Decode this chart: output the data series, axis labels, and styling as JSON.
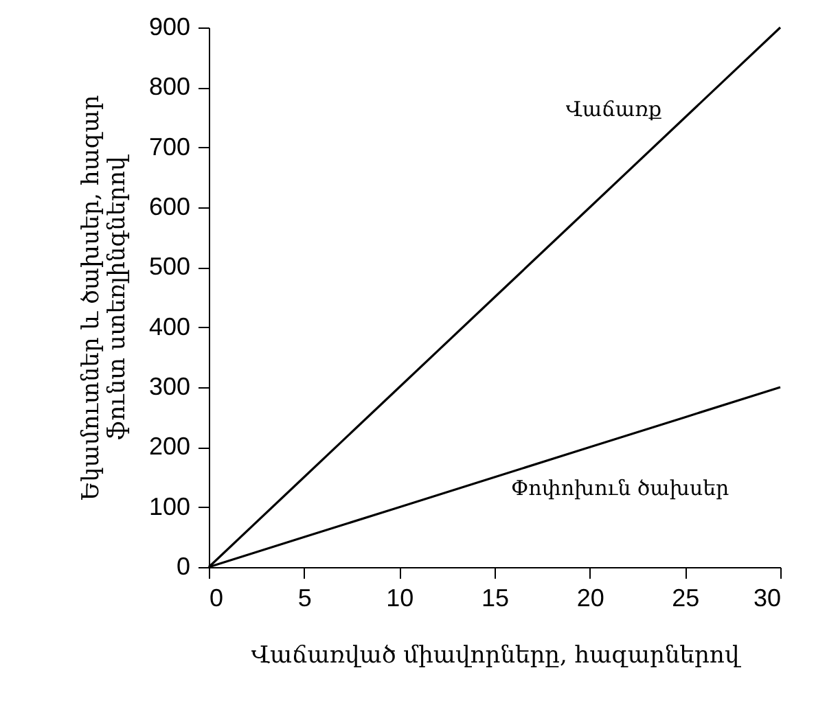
{
  "chart_data": {
    "type": "line",
    "xlabel": "Վաճառված միավորները, հազարներով",
    "ylabel": "Եկամուտներ և ծախսեր, հազար\nֆունտ ստեռլինգներով",
    "x": [
      0,
      5,
      10,
      15,
      20,
      25,
      30
    ],
    "series": [
      {
        "name": "Վաճառք",
        "color": "#000000",
        "values": [
          0,
          150,
          300,
          450,
          600,
          750,
          900
        ]
      },
      {
        "name": "Փոփոխուն ծախսեր",
        "color": "#000000",
        "values": [
          0,
          50,
          100,
          150,
          200,
          250,
          300
        ]
      }
    ],
    "xlim": [
      0,
      30
    ],
    "xticks": [
      0,
      5,
      10,
      15,
      20,
      25,
      30
    ],
    "ylim": [
      0,
      900
    ],
    "yticks": [
      0,
      100,
      200,
      300,
      400,
      500,
      600,
      700,
      800,
      900
    ],
    "grid": false,
    "marker": "none",
    "line_style": "solid"
  }
}
